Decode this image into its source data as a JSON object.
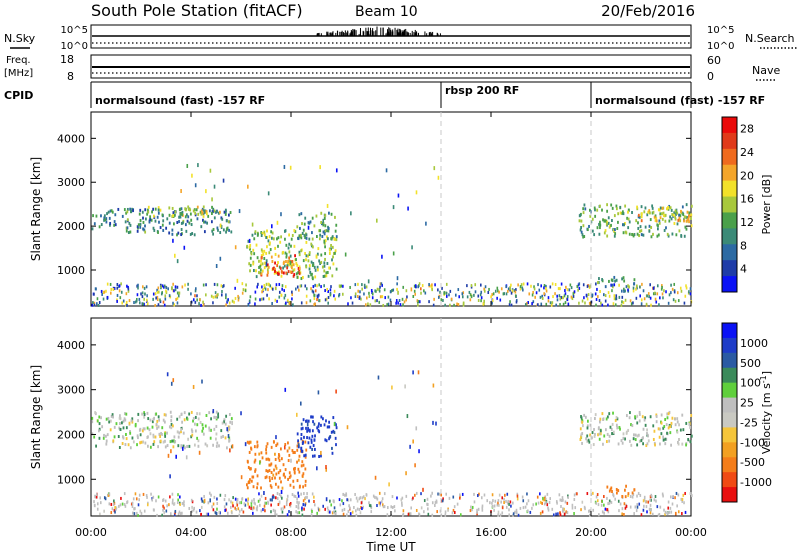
{
  "header": {
    "title": "South Pole Station (fitACF)",
    "beam": "Beam 10",
    "date": "20/Feb/2016"
  },
  "top_panels": {
    "nsky_label": "N.Sky",
    "nsearch_label": "N.Search",
    "freq_label": "Freq.",
    "freq_unit": "[MHz]",
    "nave_label": "Nave",
    "cpid_label": "CPID",
    "noise_left_ticks": [
      "10^5",
      "10^0"
    ],
    "noise_right_ticks": [
      "10^5",
      "10^0"
    ],
    "freq_ticks": [
      "18",
      "8"
    ],
    "nave_ticks": [
      "60",
      "0"
    ]
  },
  "cpid_segments": [
    {
      "label": "normalsound (fast) -157 RF",
      "start": 0,
      "end": 14
    },
    {
      "label": "rbsp 200 RF",
      "start": 14,
      "end": 20
    },
    {
      "label": "normalsound (fast) -157 RF",
      "start": 20,
      "end": 24
    }
  ],
  "colors": {
    "power": [
      "#0a12f5",
      "#1e3ca8",
      "#2c6aa3",
      "#3b8a77",
      "#4aa04a",
      "#a8c83c",
      "#f2e12a",
      "#f4a52a",
      "#ef6a1e",
      "#e03a1a",
      "#ea0a0a"
    ],
    "velocity": [
      "#e80f0f",
      "#f04a14",
      "#f47d1a",
      "#f2a022",
      "#f5c53a",
      "#c9c9c2",
      "#bfbfbf",
      "#5fcf3c",
      "#3a8a5a",
      "#2a5aa3",
      "#1e3cc8",
      "#0a12f5"
    ]
  },
  "chart_data": [
    {
      "type": "heatmap",
      "title": "Power",
      "xlabel": "Time UT",
      "ylabel": "Slant Range [km]",
      "colorbar_label": "Power [dB]",
      "xlim": [
        0,
        24
      ],
      "ylim": [
        180,
        4600
      ],
      "xticks": [
        "00:00",
        "04:00",
        "08:00",
        "12:00",
        "16:00",
        "20:00",
        "00:00"
      ],
      "yticks": [
        1000,
        2000,
        3000,
        4000
      ],
      "colorbar_ticks": [
        4,
        8,
        12,
        16,
        20,
        24,
        28
      ],
      "colorbar_range": [
        0,
        30
      ],
      "mode_change_lines": [
        14,
        20
      ],
      "regions": [
        {
          "t0": 0,
          "t1": 5.6,
          "r0": 1800,
          "r1": 2400,
          "value": 9
        },
        {
          "t0": 2.2,
          "t1": 5.2,
          "r0": 2200,
          "r1": 2450,
          "value": 15
        },
        {
          "t0": 6.2,
          "t1": 9.8,
          "r0": 800,
          "r1": 1900,
          "value": 14
        },
        {
          "t0": 6.7,
          "t1": 8.4,
          "r0": 850,
          "r1": 1350,
          "value": 24
        },
        {
          "t0": 8.2,
          "t1": 9.8,
          "r0": 1700,
          "r1": 2300,
          "value": 11
        },
        {
          "t0": 19.5,
          "t1": 24,
          "r0": 1750,
          "r1": 2500,
          "value": 12
        },
        {
          "t0": 21.8,
          "t1": 24,
          "r0": 2100,
          "r1": 2450,
          "value": 18
        },
        {
          "t0": 20.2,
          "t1": 21.8,
          "r0": 600,
          "r1": 850,
          "value": 10
        }
      ]
    },
    {
      "type": "heatmap",
      "title": "Velocity",
      "xlabel": "Time UT",
      "ylabel": "Slant Range [km]",
      "colorbar_label": "Velocity [m s^-1]",
      "xlim": [
        0,
        24
      ],
      "ylim": [
        180,
        4600
      ],
      "xticks": [
        "00:00",
        "04:00",
        "08:00",
        "12:00",
        "16:00",
        "20:00",
        "00:00"
      ],
      "yticks": [
        1000,
        2000,
        3000,
        4000
      ],
      "colorbar_ticks": [
        "1000",
        "500",
        "100",
        "25",
        "-25",
        "-100",
        "-500",
        "-1000"
      ],
      "mode_change_lines": [
        14,
        20
      ],
      "regions": [
        {
          "t0": 0,
          "t1": 5.6,
          "r0": 1700,
          "r1": 2500,
          "value": 0
        },
        {
          "t0": 6.2,
          "t1": 8.6,
          "r0": 800,
          "r1": 1850,
          "value": -300
        },
        {
          "t0": 8.2,
          "t1": 9.8,
          "r0": 1500,
          "r1": 2400,
          "value": 300
        },
        {
          "t0": 19.5,
          "t1": 24,
          "r0": 1750,
          "r1": 2500,
          "value": 0
        },
        {
          "t0": 20.6,
          "t1": 21.8,
          "r0": 600,
          "r1": 850,
          "value": -400
        }
      ]
    }
  ]
}
